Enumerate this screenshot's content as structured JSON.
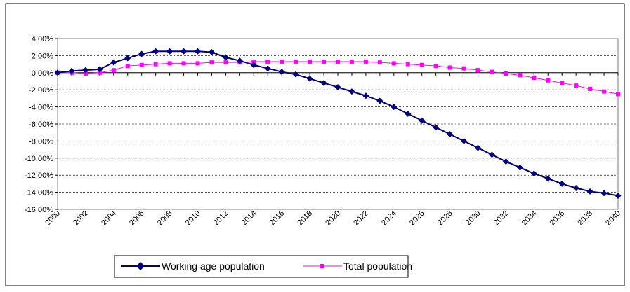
{
  "chart_data": {
    "type": "line",
    "x": [
      2000,
      2001,
      2002,
      2003,
      2004,
      2005,
      2006,
      2007,
      2008,
      2009,
      2010,
      2011,
      2012,
      2013,
      2014,
      2015,
      2016,
      2017,
      2018,
      2019,
      2020,
      2021,
      2022,
      2023,
      2024,
      2025,
      2026,
      2027,
      2028,
      2029,
      2030,
      2031,
      2032,
      2033,
      2034,
      2035,
      2036,
      2037,
      2038,
      2039,
      2040
    ],
    "x_tick_labels": [
      "2000",
      "2002",
      "2004",
      "2006",
      "2008",
      "2010",
      "2012",
      "2014",
      "2016",
      "2018",
      "2020",
      "2022",
      "2024",
      "2026",
      "2028",
      "2030",
      "2032",
      "2034",
      "2036",
      "2038",
      "2040"
    ],
    "y_tick_labels": [
      "4.00%",
      "2.00%",
      "0.00%",
      "-2.00%",
      "-4.00%",
      "-6.00%",
      "-8.00%",
      "-10.00%",
      "-12.00%",
      "-14.00%",
      "-16.00%"
    ],
    "ylim": [
      -16,
      4
    ],
    "y_unit": "%",
    "grid": true,
    "legend_position": "bottom",
    "series": [
      {
        "name": "Working age population",
        "color": "#000080",
        "marker": "diamond",
        "values": [
          0.0,
          0.2,
          0.3,
          0.4,
          1.2,
          1.7,
          2.2,
          2.5,
          2.5,
          2.5,
          2.5,
          2.4,
          1.8,
          1.4,
          0.9,
          0.5,
          0.1,
          -0.2,
          -0.7,
          -1.2,
          -1.7,
          -2.2,
          -2.7,
          -3.3,
          -4.0,
          -4.8,
          -5.6,
          -6.4,
          -7.2,
          -8.0,
          -8.8,
          -9.6,
          -10.4,
          -11.1,
          -11.8,
          -12.4,
          -13.0,
          -13.5,
          -13.9,
          -14.1,
          -14.4
        ]
      },
      {
        "name": "Total population",
        "color": "#FF00FF",
        "marker": "square",
        "values": [
          0.0,
          0.0,
          -0.1,
          0.0,
          0.3,
          0.8,
          0.9,
          1.0,
          1.1,
          1.1,
          1.1,
          1.2,
          1.2,
          1.2,
          1.3,
          1.3,
          1.3,
          1.3,
          1.3,
          1.3,
          1.3,
          1.3,
          1.3,
          1.2,
          1.1,
          1.0,
          0.9,
          0.8,
          0.6,
          0.5,
          0.3,
          0.1,
          -0.1,
          -0.3,
          -0.6,
          -0.9,
          -1.2,
          -1.5,
          -1.9,
          -2.2,
          -2.5
        ]
      }
    ]
  }
}
